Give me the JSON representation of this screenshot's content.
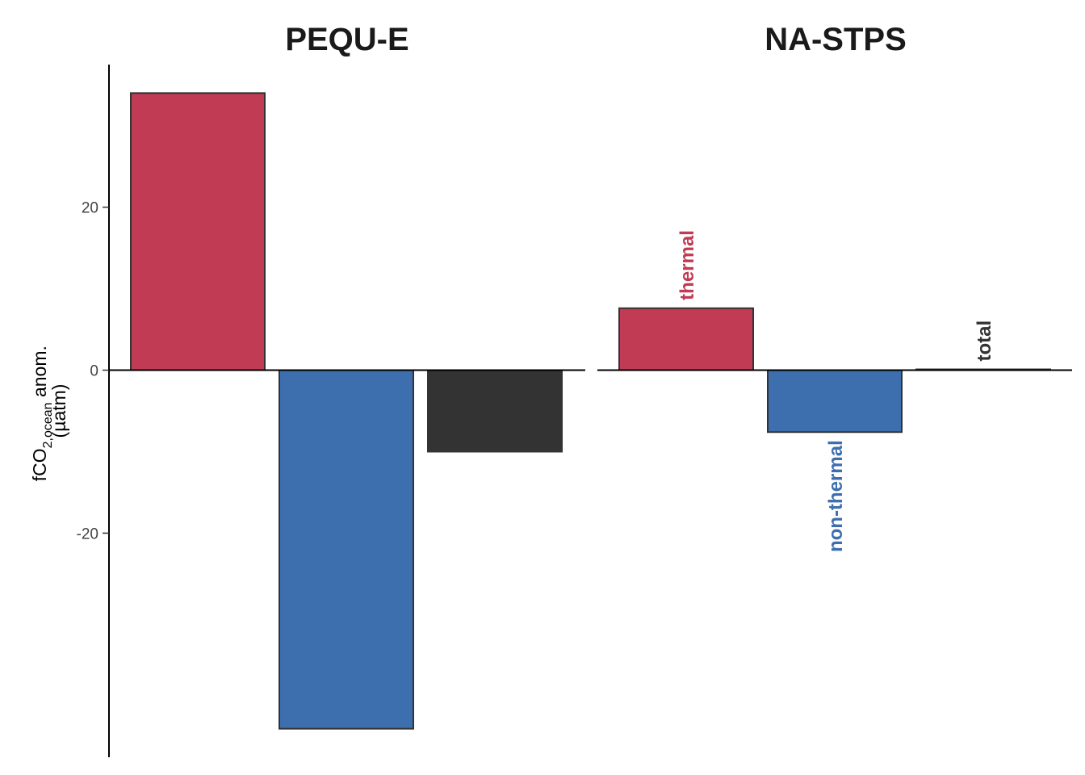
{
  "chart_data": {
    "type": "bar",
    "y_axis": {
      "label_main": "fCO",
      "label_sub1": "2",
      "label_sub2": ",ocean",
      "label_rest": " anom.",
      "label_line2": "(µatm)",
      "ylim": [
        -47.5,
        37.5
      ],
      "ticks": [
        20,
        0,
        -20
      ],
      "tick_labels": [
        "20",
        "0",
        "-20"
      ]
    },
    "categories": [
      "thermal",
      "non-thermal",
      "total"
    ],
    "colors": {
      "thermal": "#c13b55",
      "non-thermal": "#3d6faf",
      "total": "#333333"
    },
    "facets": [
      {
        "title": "PEQU-E",
        "values": [
          34,
          -44,
          -10
        ],
        "show_labels": false
      },
      {
        "title": "NA-STPS",
        "values": [
          7.6,
          -7.6,
          0.1
        ],
        "show_labels": true
      }
    ],
    "grid": false,
    "legend": "none"
  }
}
